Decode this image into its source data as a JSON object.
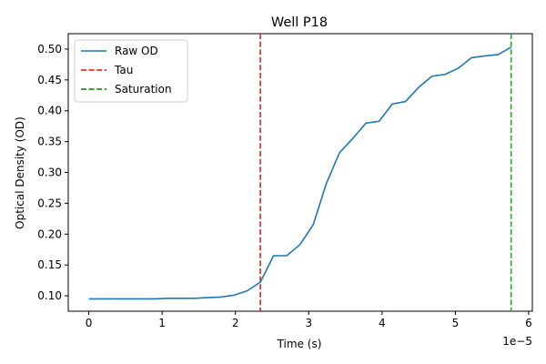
{
  "chart_data": {
    "type": "line",
    "title": "Well P18",
    "xlabel": "Time (s)",
    "ylabel": "Optical Density (OD)",
    "x_offset_label": "1e−5",
    "xlim": [
      -0.28,
      6.05
    ],
    "ylim": [
      0.075,
      0.525
    ],
    "xticks": [
      0,
      1,
      2,
      3,
      4,
      5,
      6
    ],
    "yticks": [
      0.1,
      0.15,
      0.2,
      0.25,
      0.3,
      0.35,
      0.4,
      0.45,
      0.5
    ],
    "ytick_labels": [
      "0.10",
      "0.15",
      "0.20",
      "0.25",
      "0.30",
      "0.35",
      "0.40",
      "0.45",
      "0.50"
    ],
    "grid": false,
    "legend_position": "upper-left",
    "series": [
      {
        "name": "Raw OD",
        "color": "#1f77b4",
        "x": [
          0,
          0.18,
          0.36,
          0.54,
          0.72,
          0.9,
          1.08,
          1.26,
          1.44,
          1.62,
          1.8,
          1.98,
          2.16,
          2.34,
          2.52,
          2.7,
          2.88,
          3.06,
          3.24,
          3.42,
          3.6,
          3.78,
          3.96,
          4.14,
          4.32,
          4.5,
          4.68,
          4.86,
          5.04,
          5.22,
          5.4,
          5.58,
          5.76
        ],
        "y": [
          0.095,
          0.095,
          0.095,
          0.095,
          0.095,
          0.095,
          0.096,
          0.096,
          0.096,
          0.097,
          0.098,
          0.101,
          0.108,
          0.122,
          0.165,
          0.165,
          0.183,
          0.215,
          0.282,
          0.332,
          0.355,
          0.38,
          0.383,
          0.411,
          0.415,
          0.438,
          0.456,
          0.459,
          0.469,
          0.486,
          0.489,
          0.491,
          0.503
        ]
      }
    ],
    "vlines": [
      {
        "name": "Tau",
        "x": 2.34,
        "color": "#d62728",
        "style": "dashed"
      },
      {
        "name": "Saturation",
        "x": 5.76,
        "color": "#2ca02c",
        "style": "dashed"
      }
    ],
    "legend": [
      {
        "label": "Raw OD",
        "color": "#1f77b4",
        "style": "solid"
      },
      {
        "label": "Tau",
        "color": "#ff0000",
        "style": "dashed"
      },
      {
        "label": "Saturation",
        "color": "#008000",
        "style": "dashed"
      }
    ]
  }
}
